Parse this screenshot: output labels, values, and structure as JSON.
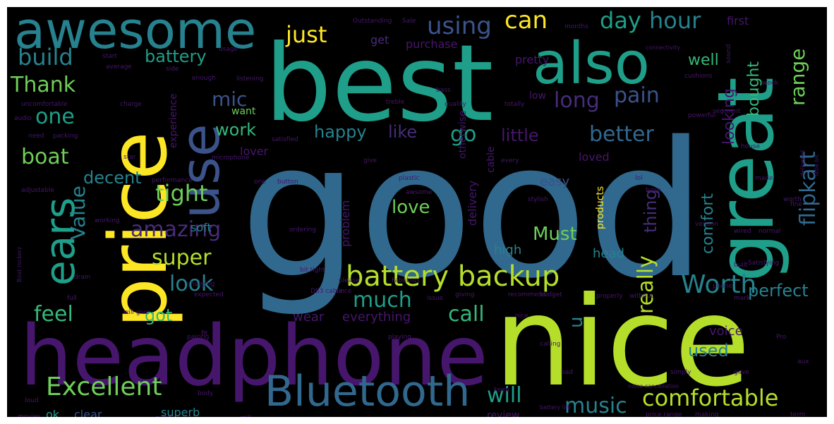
{
  "palette": {
    "purple": "#46166c",
    "violet": "#472c7a",
    "indigo": "#3b528b",
    "blue": "#31688e",
    "teal": "#26828e",
    "green": "#1f9e89",
    "seagreen": "#35b779",
    "lime": "#6ece58",
    "yellowgreen": "#b5de2b",
    "yellow": "#fde725",
    "background": "#000000"
  },
  "words": [
    {
      "text": "good",
      "color": "blue"
    },
    {
      "text": "best",
      "color": "green"
    },
    {
      "text": "nice",
      "color": "yellowgreen"
    },
    {
      "text": "headphone",
      "color": "purple"
    },
    {
      "text": "price",
      "color": "yellow"
    },
    {
      "text": "great",
      "color": "green"
    },
    {
      "text": "awesome",
      "color": "teal"
    },
    {
      "text": "also",
      "color": "green"
    },
    {
      "text": "use",
      "color": "indigo"
    },
    {
      "text": "Bluetooth",
      "color": "blue"
    },
    {
      "text": "battery backup",
      "color": "yellowgreen"
    },
    {
      "text": "ears",
      "color": "green"
    },
    {
      "text": "Excellent",
      "color": "lime"
    },
    {
      "text": "comfortable",
      "color": "yellowgreen"
    },
    {
      "text": "Worth",
      "color": "teal"
    },
    {
      "text": "flipkart",
      "color": "blue"
    },
    {
      "text": "using",
      "color": "indigo"
    },
    {
      "text": "day",
      "color": "green"
    },
    {
      "text": "hour",
      "color": "teal"
    },
    {
      "text": "can",
      "color": "yellow"
    },
    {
      "text": "just",
      "color": "yellow"
    },
    {
      "text": "build",
      "color": "teal"
    },
    {
      "text": "battery",
      "color": "green"
    },
    {
      "text": "Thank",
      "color": "lime"
    },
    {
      "text": "one",
      "color": "green"
    },
    {
      "text": "boat",
      "color": "lime"
    },
    {
      "text": "Value",
      "color": "teal"
    },
    {
      "text": "mic",
      "color": "indigo"
    },
    {
      "text": "long",
      "color": "violet"
    },
    {
      "text": "pain",
      "color": "indigo"
    },
    {
      "text": "range",
      "color": "lime"
    },
    {
      "text": "go",
      "color": "green"
    },
    {
      "text": "better",
      "color": "blue"
    },
    {
      "text": "happy",
      "color": "teal"
    },
    {
      "text": "like",
      "color": "violet"
    },
    {
      "text": "little",
      "color": "purple"
    },
    {
      "text": "work",
      "color": "seagreen"
    },
    {
      "text": "decent",
      "color": "teal"
    },
    {
      "text": "tight",
      "color": "lime"
    },
    {
      "text": "amazing",
      "color": "violet"
    },
    {
      "text": "super",
      "color": "yellowgreen"
    },
    {
      "text": "look",
      "color": "teal"
    },
    {
      "text": "feel",
      "color": "seagreen"
    },
    {
      "text": "got",
      "color": "seagreen"
    },
    {
      "text": "much",
      "color": "green"
    },
    {
      "text": "really",
      "color": "yellowgreen"
    },
    {
      "text": "call",
      "color": "seagreen"
    },
    {
      "text": "love",
      "color": "lime"
    },
    {
      "text": "Must",
      "color": "lime"
    },
    {
      "text": "perfect",
      "color": "teal"
    },
    {
      "text": "music",
      "color": "teal"
    },
    {
      "text": "will",
      "color": "green"
    },
    {
      "text": "u",
      "color": "teal"
    },
    {
      "text": "used",
      "color": "teal"
    },
    {
      "text": "thing",
      "color": "violet"
    },
    {
      "text": "comfort",
      "color": "teal"
    },
    {
      "text": "looking",
      "color": "purple"
    },
    {
      "text": "well",
      "color": "seagreen"
    },
    {
      "text": "bought",
      "color": "seagreen"
    },
    {
      "text": "get",
      "color": "violet"
    },
    {
      "text": "purchase",
      "color": "purple"
    },
    {
      "text": "pretty",
      "color": "purple"
    },
    {
      "text": "first",
      "color": "purple"
    },
    {
      "text": "problem",
      "color": "purple"
    },
    {
      "text": "head",
      "color": "teal"
    },
    {
      "text": "high",
      "color": "teal"
    },
    {
      "text": "everything",
      "color": "purple"
    },
    {
      "text": "wear",
      "color": "purple"
    },
    {
      "text": "voice",
      "color": "purple"
    },
    {
      "text": "ok",
      "color": "green"
    },
    {
      "text": "clear",
      "color": "indigo"
    },
    {
      "text": "superb",
      "color": "teal"
    },
    {
      "text": "review",
      "color": "purple"
    },
    {
      "text": "lover",
      "color": "purple"
    },
    {
      "text": "easy",
      "color": "indigo"
    },
    {
      "text": "loved",
      "color": "purple"
    },
    {
      "text": "delivery",
      "color": "purple"
    },
    {
      "text": "products",
      "color": "yellow"
    },
    {
      "text": "soft",
      "color": "teal"
    },
    {
      "text": "cable",
      "color": "purple"
    },
    {
      "text": "low",
      "color": "purple"
    },
    {
      "text": "want",
      "color": "lime"
    },
    {
      "text": "experience",
      "color": "purple"
    },
    {
      "text": "otherwise",
      "color": "purple"
    },
    {
      "text": "Outstanding",
      "color": "purple"
    },
    {
      "text": "bass",
      "color": "purple"
    },
    {
      "text": "sound",
      "color": "purple"
    },
    {
      "text": "quality",
      "color": "purple"
    },
    {
      "text": "performance",
      "color": "purple"
    },
    {
      "text": "satisfied",
      "color": "purple"
    },
    {
      "text": "microphone",
      "color": "purple"
    },
    {
      "text": "totally",
      "color": "purple"
    },
    {
      "text": "powerful",
      "color": "purple"
    },
    {
      "text": "stylish",
      "color": "purple"
    },
    {
      "text": "plastic",
      "color": "purple"
    },
    {
      "text": "button",
      "color": "purple"
    },
    {
      "text": "charge",
      "color": "purple"
    },
    {
      "text": "average",
      "color": "purple"
    },
    {
      "text": "listening",
      "color": "purple"
    },
    {
      "text": "enough",
      "color": "purple"
    },
    {
      "text": "treble",
      "color": "purple"
    },
    {
      "text": "packing",
      "color": "purple"
    },
    {
      "text": "adjustable",
      "color": "purple"
    },
    {
      "text": "working",
      "color": "purple"
    },
    {
      "text": "connectivity",
      "color": "purple"
    },
    {
      "text": "cushions",
      "color": "purple"
    },
    {
      "text": "segment",
      "color": "purple"
    },
    {
      "text": "bit tight",
      "color": "purple"
    },
    {
      "text": "budget",
      "color": "purple"
    },
    {
      "text": "properly",
      "color": "purple"
    },
    {
      "text": "without",
      "color": "purple"
    },
    {
      "text": "recommend",
      "color": "purple"
    },
    {
      "text": "giving",
      "color": "purple"
    },
    {
      "text": "issue",
      "color": "purple"
    },
    {
      "text": "playing",
      "color": "purple"
    },
    {
      "text": "pairing",
      "color": "purple"
    },
    {
      "text": "expected",
      "color": "purple"
    },
    {
      "text": "Fabulous",
      "color": "purple"
    },
    {
      "text": "battery life",
      "color": "purple"
    },
    {
      "text": "noise cancellation",
      "color": "purple"
    },
    {
      "text": "calling",
      "color": "purple"
    },
    {
      "text": "simply",
      "color": "purple"
    },
    {
      "text": "price range",
      "color": "purple"
    },
    {
      "text": "making",
      "color": "purple"
    },
    {
      "text": "wired",
      "color": "purple"
    },
    {
      "text": "normal",
      "color": "purple"
    },
    {
      "text": "Satisfying",
      "color": "purple"
    },
    {
      "text": "phone",
      "color": "purple"
    },
    {
      "text": "built",
      "color": "purple"
    },
    {
      "text": "version",
      "color": "purple"
    },
    {
      "text": "delivered",
      "color": "purple"
    },
    {
      "text": "little bit",
      "color": "purple"
    },
    {
      "text": "worth",
      "color": "purple"
    },
    {
      "text": "quite",
      "color": "purple"
    },
    {
      "text": "still",
      "color": "purple"
    },
    {
      "text": "body",
      "color": "purple"
    },
    {
      "text": "loud",
      "color": "purple"
    },
    {
      "text": "movies",
      "color": "purple"
    },
    {
      "text": "Boat rockerz",
      "color": "purple"
    },
    {
      "text": "will give",
      "color": "purple"
    },
    {
      "text": "charging",
      "color": "purple"
    },
    {
      "text": "drain",
      "color": "purple"
    },
    {
      "text": "full",
      "color": "purple"
    },
    {
      "text": "please",
      "color": "purple"
    },
    {
      "text": "since",
      "color": "purple"
    },
    {
      "text": "DS3 cable",
      "color": "purple"
    },
    {
      "text": "awsome",
      "color": "purple"
    },
    {
      "text": "ordering",
      "color": "purple"
    },
    {
      "text": "every",
      "color": "purple"
    },
    {
      "text": "give",
      "color": "purple"
    },
    {
      "text": "made",
      "color": "purple"
    },
    {
      "text": "house",
      "color": "purple"
    },
    {
      "text": "fine",
      "color": "purple"
    },
    {
      "text": "lol",
      "color": "purple"
    },
    {
      "text": "base",
      "color": "purple"
    },
    {
      "text": "keep",
      "color": "purple"
    },
    {
      "text": "bad",
      "color": "purple"
    },
    {
      "text": "gave",
      "color": "purple"
    },
    {
      "text": "Pro",
      "color": "purple"
    },
    {
      "text": "mark",
      "color": "purple"
    },
    {
      "text": "aux",
      "color": "purple"
    },
    {
      "text": "term",
      "color": "purple"
    },
    {
      "text": "Sale",
      "color": "purple"
    },
    {
      "text": "months",
      "color": "purple"
    },
    {
      "text": "uncomfortable",
      "color": "purple"
    },
    {
      "text": "audio",
      "color": "purple"
    },
    {
      "text": "need",
      "color": "purple"
    },
    {
      "text": "start",
      "color": "purple"
    },
    {
      "text": "side",
      "color": "purple"
    },
    {
      "text": "usage",
      "color": "purple"
    },
    {
      "text": "week",
      "color": "purple"
    },
    {
      "text": "star",
      "color": "purple"
    },
    {
      "text": "nice",
      "color": "purple"
    },
    {
      "text": "one",
      "color": "purple"
    },
    {
      "text": "fit",
      "color": "purple"
    }
  ]
}
